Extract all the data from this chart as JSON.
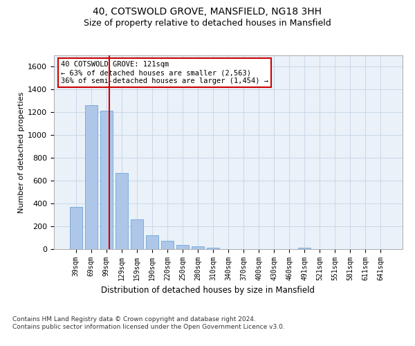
{
  "title": "40, COTSWOLD GROVE, MANSFIELD, NG18 3HH",
  "subtitle": "Size of property relative to detached houses in Mansfield",
  "xlabel": "Distribution of detached houses by size in Mansfield",
  "ylabel": "Number of detached properties",
  "categories": [
    "39sqm",
    "69sqm",
    "99sqm",
    "129sqm",
    "159sqm",
    "190sqm",
    "220sqm",
    "250sqm",
    "280sqm",
    "310sqm",
    "340sqm",
    "370sqm",
    "400sqm",
    "430sqm",
    "460sqm",
    "491sqm",
    "521sqm",
    "551sqm",
    "581sqm",
    "611sqm",
    "641sqm"
  ],
  "values": [
    370,
    1265,
    1215,
    665,
    260,
    120,
    73,
    35,
    22,
    13,
    0,
    0,
    0,
    0,
    0,
    12,
    0,
    0,
    0,
    0,
    0
  ],
  "bar_color": "#aec6e8",
  "bar_edge_color": "#5b9bd5",
  "property_size": 121,
  "property_bin_index": 2,
  "vline_color": "#cc0000",
  "annotation_text": "40 COTSWOLD GROVE: 121sqm\n← 63% of detached houses are smaller (2,563)\n36% of semi-detached houses are larger (1,454) →",
  "annotation_box_color": "#ffffff",
  "annotation_box_edge_color": "#cc0000",
  "ylim": [
    0,
    1700
  ],
  "yticks": [
    0,
    200,
    400,
    600,
    800,
    1000,
    1200,
    1400,
    1600
  ],
  "grid_color": "#c8d8e8",
  "background_color": "#eaf1f8",
  "footer_text": "Contains HM Land Registry data © Crown copyright and database right 2024.\nContains public sector information licensed under the Open Government Licence v3.0.",
  "title_fontsize": 10,
  "subtitle_fontsize": 9,
  "xlabel_fontsize": 8.5,
  "ylabel_fontsize": 8,
  "footer_fontsize": 6.5,
  "tick_fontsize": 7,
  "annotation_fontsize": 7.5
}
